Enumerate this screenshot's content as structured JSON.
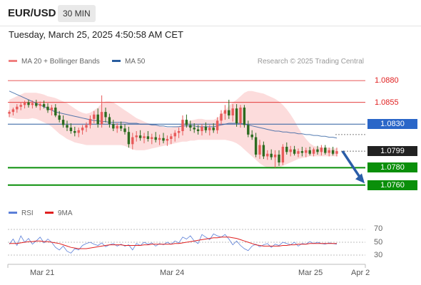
{
  "header": {
    "pair": "EUR/USD",
    "timeframe": "30 MIN",
    "datetime": "Tuesday, March 25, 2025 4:50:58 AM CET"
  },
  "legend": {
    "ma20": {
      "label": "MA 20 + Bollinger Bands",
      "color": "#f08080"
    },
    "ma50": {
      "label": "MA 50",
      "color": "#2a5d9f"
    },
    "credit": "Research © 2025 Trading Central",
    "rsi": {
      "label": "RSI",
      "color": "#5b7fd8"
    },
    "rsi9": {
      "label": "9MA",
      "color": "#e02020"
    }
  },
  "colors": {
    "bull": "#e85a5a",
    "bear": "#2b6b1f",
    "support": "#0a8f0a",
    "resistance": "#e02020",
    "ma50": "#2a5d9f",
    "band": "#fbd0d0"
  },
  "chart_data": {
    "type": "candlestick",
    "ylim": [
      1.075,
      1.0885
    ],
    "price_levels": [
      {
        "label": "1.0880",
        "value": 1.088,
        "kind": "resistance"
      },
      {
        "label": "1.0855",
        "value": 1.0855,
        "kind": "resistance"
      },
      {
        "label": "1.0830",
        "value": 1.083,
        "kind": "ma50"
      },
      {
        "label": "1.0799",
        "value": 1.0799,
        "kind": "current"
      },
      {
        "label": "1.0780",
        "value": 1.078,
        "kind": "support"
      },
      {
        "label": "1.0760",
        "value": 1.076,
        "kind": "support"
      }
    ],
    "x_labels": [
      "Mar 21",
      "Mar 24",
      "Mar 25",
      "Apr 2"
    ],
    "candles": [
      [
        1.0842,
        1.0846,
        1.0838,
        1.0844
      ],
      [
        1.0844,
        1.0849,
        1.084,
        1.0847
      ],
      [
        1.0847,
        1.0853,
        1.0843,
        1.085
      ],
      [
        1.085,
        1.0855,
        1.0846,
        1.0852
      ],
      [
        1.0852,
        1.0857,
        1.0848,
        1.0855
      ],
      [
        1.0855,
        1.0858,
        1.0849,
        1.0852
      ],
      [
        1.0852,
        1.0857,
        1.0848,
        1.0854
      ],
      [
        1.0854,
        1.0858,
        1.0849,
        1.0851
      ],
      [
        1.0851,
        1.0856,
        1.0846,
        1.0853
      ],
      [
        1.0853,
        1.0857,
        1.0848,
        1.085
      ],
      [
        1.085,
        1.0854,
        1.0843,
        1.0846
      ],
      [
        1.0846,
        1.0852,
        1.084,
        1.0849
      ],
      [
        1.0849,
        1.0853,
        1.0838,
        1.084
      ],
      [
        1.084,
        1.0845,
        1.0832,
        1.0835
      ],
      [
        1.0835,
        1.084,
        1.0826,
        1.0829
      ],
      [
        1.0829,
        1.0834,
        1.0822,
        1.0826
      ],
      [
        1.0826,
        1.0831,
        1.0819,
        1.0822
      ],
      [
        1.0822,
        1.0827,
        1.0816,
        1.082
      ],
      [
        1.082,
        1.0826,
        1.0815,
        1.0823
      ],
      [
        1.0823,
        1.0829,
        1.0818,
        1.0826
      ],
      [
        1.0826,
        1.0832,
        1.0821,
        1.0829
      ],
      [
        1.0829,
        1.084,
        1.0825,
        1.0836
      ],
      [
        1.0836,
        1.0845,
        1.0831,
        1.0841
      ],
      [
        1.0841,
        1.0848,
        1.0826,
        1.083
      ],
      [
        1.083,
        1.0863,
        1.0826,
        1.0844
      ],
      [
        1.0844,
        1.0849,
        1.0832,
        1.0838
      ],
      [
        1.0838,
        1.0842,
        1.0826,
        1.083
      ],
      [
        1.083,
        1.0835,
        1.0822,
        1.0825
      ],
      [
        1.0825,
        1.0831,
        1.082,
        1.0828
      ],
      [
        1.0828,
        1.0833,
        1.0822,
        1.0825
      ],
      [
        1.0825,
        1.083,
        1.0818,
        1.0821
      ],
      [
        1.0821,
        1.0827,
        1.0803,
        1.0807
      ],
      [
        1.0807,
        1.082,
        1.0801,
        1.0815
      ],
      [
        1.0815,
        1.0822,
        1.081,
        1.0817
      ],
      [
        1.0817,
        1.0823,
        1.0811,
        1.0814
      ],
      [
        1.0814,
        1.082,
        1.0808,
        1.0816
      ],
      [
        1.0816,
        1.0822,
        1.081,
        1.0813
      ],
      [
        1.0813,
        1.0819,
        1.0807,
        1.0815
      ],
      [
        1.0815,
        1.0821,
        1.0809,
        1.0812
      ],
      [
        1.0812,
        1.0818,
        1.0806,
        1.0814
      ],
      [
        1.0814,
        1.082,
        1.0808,
        1.0811
      ],
      [
        1.0811,
        1.0817,
        1.0805,
        1.0813
      ],
      [
        1.0813,
        1.0819,
        1.0807,
        1.0816
      ],
      [
        1.0816,
        1.0823,
        1.081,
        1.082
      ],
      [
        1.082,
        1.0826,
        1.0814,
        1.0822
      ],
      [
        1.0822,
        1.084,
        1.0817,
        1.0835
      ],
      [
        1.0835,
        1.0841,
        1.0826,
        1.0829
      ],
      [
        1.0829,
        1.0834,
        1.0822,
        1.0826
      ],
      [
        1.0826,
        1.0831,
        1.082,
        1.0824
      ],
      [
        1.0824,
        1.0829,
        1.0818,
        1.0822
      ],
      [
        1.0822,
        1.083,
        1.0817,
        1.0827
      ],
      [
        1.0827,
        1.0832,
        1.082,
        1.0823
      ],
      [
        1.0823,
        1.0829,
        1.0817,
        1.0826
      ],
      [
        1.0826,
        1.0831,
        1.082,
        1.0823
      ],
      [
        1.0823,
        1.0838,
        1.0819,
        1.0834
      ],
      [
        1.0834,
        1.0846,
        1.0829,
        1.0842
      ],
      [
        1.0842,
        1.0852,
        1.0835,
        1.0846
      ],
      [
        1.0846,
        1.0858,
        1.0836,
        1.084
      ],
      [
        1.084,
        1.0853,
        1.0833,
        1.0848
      ],
      [
        1.0848,
        1.0853,
        1.0827,
        1.0831
      ],
      [
        1.0831,
        1.0852,
        1.0826,
        1.0849
      ],
      [
        1.0849,
        1.0852,
        1.0826,
        1.0829
      ],
      [
        1.0829,
        1.0834,
        1.0815,
        1.0818
      ],
      [
        1.0818,
        1.0823,
        1.0812,
        1.0815
      ],
      [
        1.0815,
        1.082,
        1.0792,
        1.0795
      ],
      [
        1.0795,
        1.0812,
        1.079,
        1.0806
      ],
      [
        1.0806,
        1.081,
        1.079,
        1.0793
      ],
      [
        1.0793,
        1.08,
        1.0789,
        1.0796
      ],
      [
        1.0796,
        1.0801,
        1.0789,
        1.0792
      ],
      [
        1.0792,
        1.08,
        1.078,
        1.0795
      ],
      [
        1.0795,
        1.08,
        1.0782,
        1.0786
      ],
      [
        1.0786,
        1.0807,
        1.0783,
        1.0804
      ],
      [
        1.0804,
        1.0809,
        1.0795,
        1.0798
      ],
      [
        1.0798,
        1.0805,
        1.0793,
        1.0801
      ],
      [
        1.0801,
        1.0805,
        1.0794,
        1.0796
      ],
      [
        1.0796,
        1.0802,
        1.0792,
        1.0799
      ],
      [
        1.0799,
        1.0804,
        1.0793,
        1.0797
      ],
      [
        1.0797,
        1.0803,
        1.0792,
        1.08
      ],
      [
        1.08,
        1.0804,
        1.0794,
        1.0796
      ],
      [
        1.0796,
        1.0803,
        1.0793,
        1.0801
      ],
      [
        1.0801,
        1.0805,
        1.0795,
        1.0798
      ],
      [
        1.0798,
        1.0806,
        1.0794,
        1.0803
      ],
      [
        1.0803,
        1.0806,
        1.0795,
        1.0797
      ],
      [
        1.0797,
        1.0803,
        1.0793,
        1.08
      ],
      [
        1.08,
        1.0804,
        1.0794,
        1.0796
      ],
      [
        1.0796,
        1.0803,
        1.0793,
        1.0799
      ]
    ],
    "ma50": [
      1.0868,
      1.0866,
      1.0864,
      1.0862,
      1.086,
      1.0858,
      1.0856,
      1.0854,
      1.0852,
      1.085,
      1.0848,
      1.0846,
      1.0844,
      1.0843,
      1.0842,
      1.0841,
      1.084,
      1.0839,
      1.0838,
      1.0837,
      1.0836,
      1.0835,
      1.0834,
      1.0834,
      1.0833,
      1.0833,
      1.0832,
      1.0832,
      1.0832,
      1.0832,
      1.0832,
      1.0831,
      1.0831,
      1.0831,
      1.083,
      1.083,
      1.083,
      1.0829,
      1.0829,
      1.0828,
      1.0828,
      1.0827,
      1.0827,
      1.0827,
      1.0827,
      1.0828,
      1.0828,
      1.0828,
      1.0828,
      1.0827,
      1.0827,
      1.0827,
      1.0827,
      1.0827,
      1.0828,
      1.0829,
      1.083,
      1.0831,
      1.0831,
      1.0831,
      1.0831,
      1.083,
      1.0829,
      1.0828,
      1.0827,
      1.0826,
      1.0825,
      1.0824,
      1.0823,
      1.0822,
      1.0822,
      1.0821,
      1.0821,
      1.082,
      1.082,
      1.0819,
      1.0819,
      1.0818,
      1.0818,
      1.0817,
      1.0817,
      1.0816,
      1.0816,
      1.0815,
      1.0815,
      1.0814
    ],
    "bollinger": {
      "upper": [
        1.0858,
        1.086,
        1.0862,
        1.0864,
        1.0866,
        1.0866,
        1.0866,
        1.0866,
        1.0865,
        1.0864,
        1.0862,
        1.0861,
        1.086,
        1.0858,
        1.0856,
        1.0854,
        1.0851,
        1.0848,
        1.0845,
        1.0843,
        1.0842,
        1.0843,
        1.0846,
        1.0849,
        1.0854,
        1.0856,
        1.0856,
        1.0855,
        1.0852,
        1.0849,
        1.0846,
        1.0843,
        1.084,
        1.0837,
        1.0835,
        1.0833,
        1.0831,
        1.083,
        1.0829,
        1.0828,
        1.0827,
        1.0826,
        1.0826,
        1.0827,
        1.0828,
        1.083,
        1.0832,
        1.0834,
        1.0835,
        1.0836,
        1.0836,
        1.0835,
        1.0835,
        1.0835,
        1.0837,
        1.0841,
        1.0846,
        1.0851,
        1.0855,
        1.0858,
        1.0862,
        1.0866,
        1.0868,
        1.0868,
        1.0867,
        1.0866,
        1.0865,
        1.0863,
        1.0861,
        1.0859,
        1.0856,
        1.0852,
        1.0847,
        1.0841,
        1.0834,
        1.0826,
        1.0819,
        1.0813,
        1.0808,
        1.0805,
        1.0804,
        1.0803,
        1.0803,
        1.0803,
        1.0802,
        1.0802
      ],
      "lower": [
        1.0838,
        1.0837,
        1.0836,
        1.0836,
        1.0836,
        1.0836,
        1.0837,
        1.0836,
        1.0834,
        1.0832,
        1.083,
        1.0827,
        1.0823,
        1.0819,
        1.0816,
        1.0813,
        1.0811,
        1.0809,
        1.0808,
        1.0807,
        1.0806,
        1.0806,
        1.0806,
        1.0806,
        1.0806,
        1.0806,
        1.0806,
        1.0806,
        1.0806,
        1.0806,
        1.0805,
        1.0803,
        1.0801,
        1.08,
        1.08,
        1.08,
        1.0801,
        1.0802,
        1.0803,
        1.0804,
        1.0805,
        1.0806,
        1.0807,
        1.0808,
        1.0809,
        1.081,
        1.081,
        1.0811,
        1.0811,
        1.0812,
        1.0812,
        1.0812,
        1.0812,
        1.0812,
        1.0812,
        1.0812,
        1.0812,
        1.0811,
        1.081,
        1.0808,
        1.0805,
        1.0801,
        1.0797,
        1.0793,
        1.0789,
        1.0785,
        1.0782,
        1.078,
        1.0779,
        1.0779,
        1.078,
        1.0782,
        1.0784,
        1.0786,
        1.0788,
        1.079,
        1.0791,
        1.0792,
        1.0793,
        1.0793,
        1.0793,
        1.0793,
        1.0793,
        1.0793,
        1.0793,
        1.0793
      ]
    },
    "rsi": {
      "ylim": [
        25,
        75
      ],
      "y_ticks": [
        70,
        50,
        30
      ],
      "rsi": [
        47,
        55,
        45,
        60,
        50,
        56,
        47,
        52,
        58,
        49,
        55,
        50,
        42,
        38,
        44,
        36,
        33,
        40,
        38,
        45,
        48,
        50,
        47,
        45,
        49,
        43,
        46,
        48,
        44,
        47,
        44,
        46,
        38,
        48,
        45,
        50,
        47,
        49,
        44,
        48,
        46,
        50,
        47,
        52,
        49,
        58,
        55,
        60,
        52,
        48,
        62,
        58,
        54,
        63,
        60,
        58,
        62,
        55,
        46,
        52,
        45,
        40,
        37,
        44,
        47,
        43,
        46,
        48,
        42,
        47,
        45,
        50,
        48,
        46,
        50,
        44,
        48,
        47,
        51,
        48,
        50,
        48,
        47,
        49,
        48,
        47
      ],
      "ma9": [
        48,
        48,
        48,
        49,
        50,
        51,
        51,
        52,
        52,
        51,
        51,
        50,
        49,
        48,
        46,
        44,
        42,
        41,
        40,
        40,
        40,
        41,
        42,
        43,
        44,
        45,
        46,
        46,
        46,
        46,
        45,
        45,
        45,
        45,
        45,
        46,
        46,
        47,
        47,
        47,
        47,
        47,
        47,
        48,
        48,
        49,
        50,
        51,
        52,
        53,
        54,
        55,
        56,
        57,
        57,
        58,
        58,
        58,
        57,
        56,
        54,
        52,
        50,
        48,
        46,
        45,
        44,
        44,
        44,
        44,
        44,
        45,
        45,
        46,
        46,
        47,
        47,
        47,
        48,
        48,
        48,
        48,
        48,
        48,
        48,
        48
      ]
    }
  }
}
